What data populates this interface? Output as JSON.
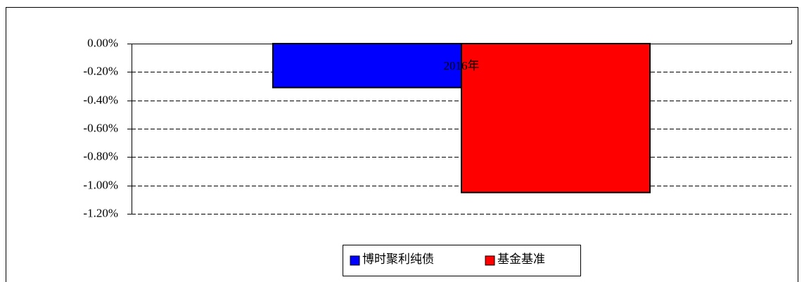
{
  "chart_data": {
    "type": "bar",
    "categories": [
      "2016年"
    ],
    "series": [
      {
        "name": "博时聚利纯债",
        "color": "#0000ff",
        "values": [
          -0.31
        ]
      },
      {
        "name": "基金基准",
        "color": "#ff0000",
        "values": [
          -1.05
        ]
      }
    ],
    "ylim": [
      -1.2,
      0
    ],
    "yticks": [
      {
        "value": 0,
        "label": "0.00%"
      },
      {
        "value": -0.2,
        "label": "-0.20%"
      },
      {
        "value": -0.4,
        "label": "-0.40%"
      },
      {
        "value": -0.6,
        "label": "-0.60%"
      },
      {
        "value": -0.8,
        "label": "-0.80%"
      },
      {
        "value": -1.0,
        "label": "-1.00%"
      },
      {
        "value": -1.2,
        "label": "-1.20%"
      }
    ],
    "grid": true,
    "legend": "bottom"
  }
}
